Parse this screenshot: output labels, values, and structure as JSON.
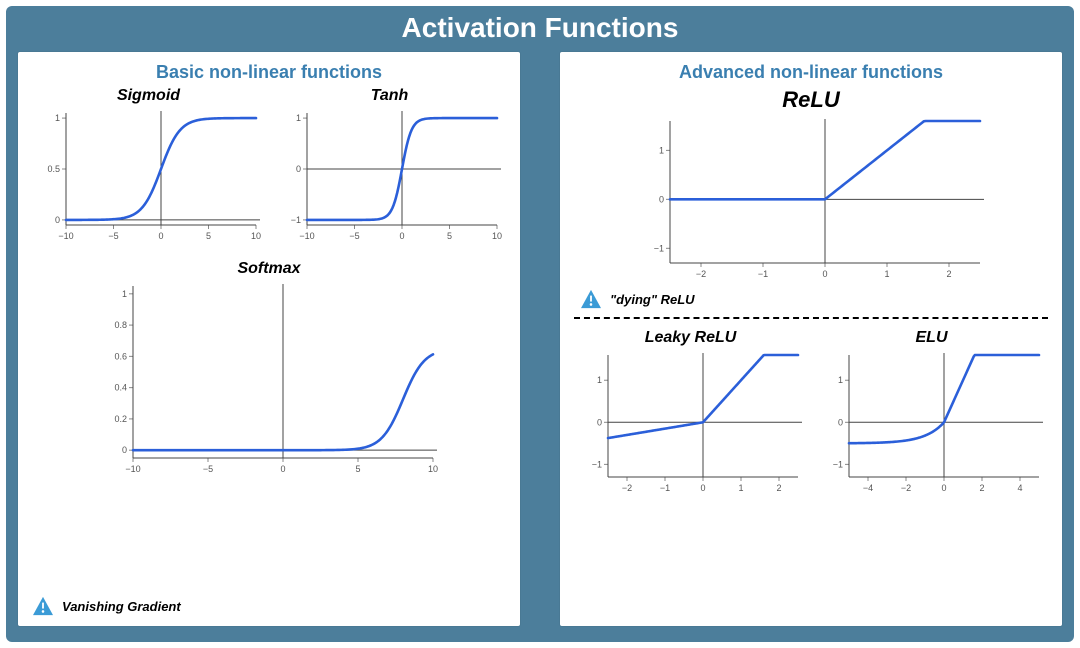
{
  "page": {
    "title": "Activation Functions",
    "title_fontsize": 28,
    "title_color": "#ffffff",
    "frame_bg": "#4c7e9b",
    "panel_bg": "#ffffff"
  },
  "warning": {
    "icon_name": "warning-triangle",
    "icon_fill": "#3b9bd6",
    "icon_fg": "#ffffff"
  },
  "chart_style": {
    "line_color": "#2b5fd9",
    "line_width": 2.6,
    "axis_color": "#444444",
    "tick_color": "#888888",
    "tick_fontsize": 9,
    "tick_font_color": "#555555",
    "title_fontsize": 15
  },
  "panels": {
    "left": {
      "title": "Basic non-linear functions",
      "title_color": "#3a7fb0",
      "title_fontsize": 18,
      "note": "Vanishing Gradient",
      "charts": {
        "sigmoid": {
          "title": "Sigmoid",
          "type": "line",
          "xlim": [
            -10,
            10
          ],
          "ylim": [
            -0.05,
            1.05
          ],
          "xticks": [
            -10,
            -5,
            0,
            5,
            10
          ],
          "yticks": [
            0.0,
            0.5,
            1.0
          ],
          "fn": "sigmoid"
        },
        "tanh": {
          "title": "Tanh",
          "type": "line",
          "xlim": [
            -10,
            10
          ],
          "ylim": [
            -1.1,
            1.1
          ],
          "xticks": [
            -10,
            -5,
            0,
            5,
            10
          ],
          "yticks": [
            -1,
            0,
            1
          ],
          "fn": "tanh"
        },
        "softmax": {
          "title": "Softmax",
          "type": "line",
          "xlim": [
            -10,
            10
          ],
          "ylim": [
            -0.05,
            1.05
          ],
          "xticks": [
            -10,
            -5,
            0,
            5,
            10
          ],
          "yticks": [
            0.0,
            0.2,
            0.4,
            0.6,
            0.8,
            1.0
          ],
          "fn": "softmax_like"
        }
      }
    },
    "right": {
      "title": "Advanced non-linear functions",
      "title_color": "#3a7fb0",
      "title_fontsize": 18,
      "note": "\"dying\" ReLU",
      "charts": {
        "relu": {
          "title": "ReLU",
          "type": "line",
          "title_fontsize": 22,
          "xlim": [
            -2.5,
            2.5
          ],
          "ylim": [
            -1.3,
            1.6
          ],
          "xticks": [
            -2,
            -1,
            0,
            1,
            2
          ],
          "yticks": [
            -1,
            0,
            1
          ],
          "fn": "relu",
          "slope": 1
        },
        "leaky": {
          "title": "Leaky ReLU",
          "type": "line",
          "xlim": [
            -2.5,
            2.5
          ],
          "ylim": [
            -1.3,
            1.6
          ],
          "xticks": [
            -2,
            -1,
            0,
            1,
            2
          ],
          "yticks": [
            -1,
            0,
            1
          ],
          "fn": "leaky_relu",
          "neg_slope": 0.15
        },
        "elu": {
          "title": "ELU",
          "type": "line",
          "xlim": [
            -5,
            5
          ],
          "ylim": [
            -1.3,
            1.6
          ],
          "xticks": [
            -4,
            -2,
            0,
            2,
            4
          ],
          "yticks": [
            -1,
            0,
            1
          ],
          "fn": "elu",
          "alpha": 0.5
        }
      }
    }
  }
}
